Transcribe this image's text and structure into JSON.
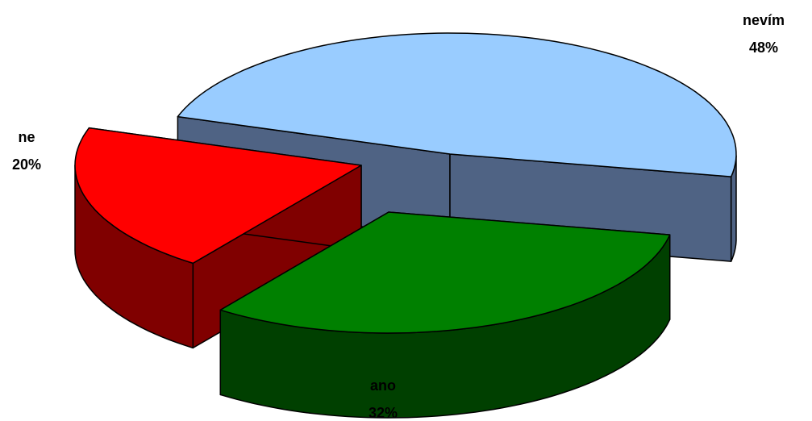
{
  "chart_data": {
    "type": "pie",
    "style": "3d-exploded",
    "slices": [
      {
        "name": "nevím",
        "value": 48,
        "value_label": "48%",
        "top_color": "#99ccff",
        "side_color": "#4f6384"
      },
      {
        "name": "ano",
        "value": 32,
        "value_label": "32%",
        "top_color": "#008000",
        "side_color": "#004000"
      },
      {
        "name": "ne",
        "value": 20,
        "value_label": "20%",
        "top_color": "#ff0000",
        "side_color": "#800000"
      }
    ],
    "legend": "none",
    "labels": "outside"
  }
}
